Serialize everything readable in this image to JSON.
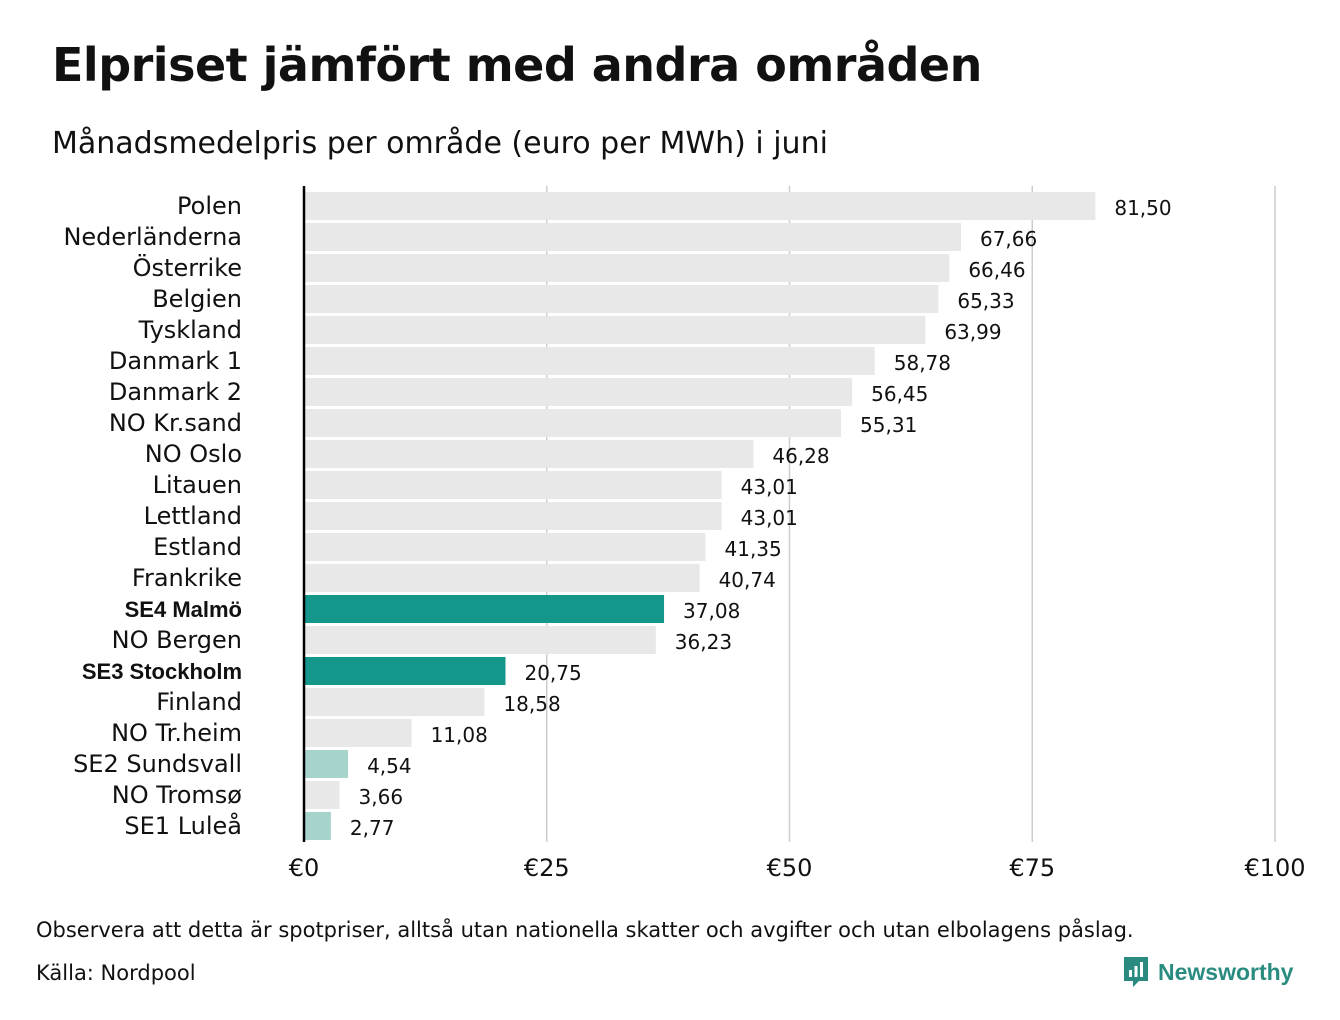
{
  "title": "Elpriset jämfört med andra områden",
  "subtitle": "Månadsmedelpris per område (euro per MWh) i juni",
  "footnote": "Observera att detta är spotpriser, alltså utan nationella skatter och avgifter och utan elbolagens påslag.",
  "source": "Källa: Nordpool",
  "logo_text": "Newsworthy",
  "colors": {
    "default_bar": "#e8e8e8",
    "highlight_bar": "#14968a",
    "light_highlight_bar": "#a7d3cd",
    "axis": "#000000",
    "grid": "#cccccc",
    "brand": "#2a8c80"
  },
  "chart_data": {
    "type": "bar",
    "orientation": "horizontal",
    "categories": [
      "Polen",
      "Nederländerna",
      "Österrike",
      "Belgien",
      "Tyskland",
      "Danmark  1",
      "Danmark  2",
      "NO Kr.sand",
      "NO Oslo",
      "Litauen",
      "Lettland",
      "Estland",
      "Frankrike",
      "SE4 Malmö",
      "NO Bergen",
      "SE3 Stockholm",
      "Finland",
      "NO Tr.heim",
      "SE2  Sundsvall",
      "NO Tromsø",
      "SE1  Luleå"
    ],
    "values": [
      81.5,
      67.66,
      66.46,
      65.33,
      63.99,
      58.78,
      56.45,
      55.31,
      46.28,
      43.01,
      43.01,
      41.35,
      40.74,
      37.08,
      36.23,
      20.75,
      18.58,
      11.08,
      4.54,
      3.66,
      2.77
    ],
    "value_labels": [
      "81,50",
      "67,66",
      "66,46",
      "65,33",
      "63,99",
      "58,78",
      "56,45",
      "55,31",
      "46,28",
      "43,01",
      "43,01",
      "41,35",
      "40,74",
      "37,08",
      "36,23",
      "20,75",
      "18,58",
      "11,08",
      "4,54",
      "3,66",
      "2,77"
    ],
    "highlight": [
      "none",
      "none",
      "none",
      "none",
      "none",
      "none",
      "none",
      "none",
      "none",
      "none",
      "none",
      "none",
      "none",
      "strong",
      "none",
      "strong",
      "none",
      "none",
      "light",
      "none",
      "light"
    ],
    "xlim": [
      0,
      100
    ],
    "xticks": [
      0,
      25,
      50,
      75,
      100
    ],
    "xtick_labels": [
      "€0",
      "€25",
      "€50",
      "€75",
      "€100"
    ],
    "grid": true,
    "xlabel": "",
    "ylabel": ""
  }
}
